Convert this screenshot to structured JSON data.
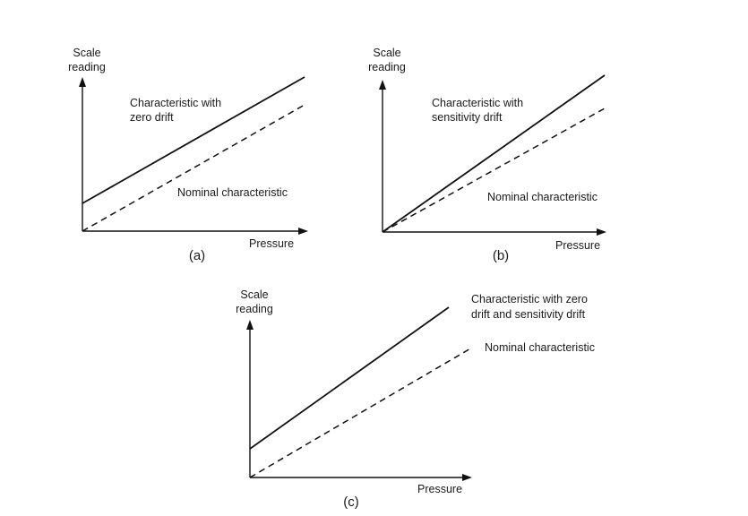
{
  "panels": [
    {
      "id": "a",
      "y_label_1": "Scale",
      "y_label_2": "reading",
      "x_label": "Pressure",
      "caption": "(a)",
      "drift_label_1": "Characteristic with",
      "drift_label_2": "zero drift",
      "nominal_label": "Nominal characteristic"
    },
    {
      "id": "b",
      "y_label_1": "Scale",
      "y_label_2": "reading",
      "x_label": "Pressure",
      "caption": "(b)",
      "drift_label_1": "Characteristic with",
      "drift_label_2": "sensitivity drift",
      "nominal_label": "Nominal characteristic"
    },
    {
      "id": "c",
      "y_label_1": "Scale",
      "y_label_2": "reading",
      "x_label": "Pressure",
      "caption": "(c)",
      "drift_label_1": "Characteristic with zero",
      "drift_label_2": "drift and sensitivity drift",
      "nominal_label": "Nominal characteristic"
    }
  ]
}
